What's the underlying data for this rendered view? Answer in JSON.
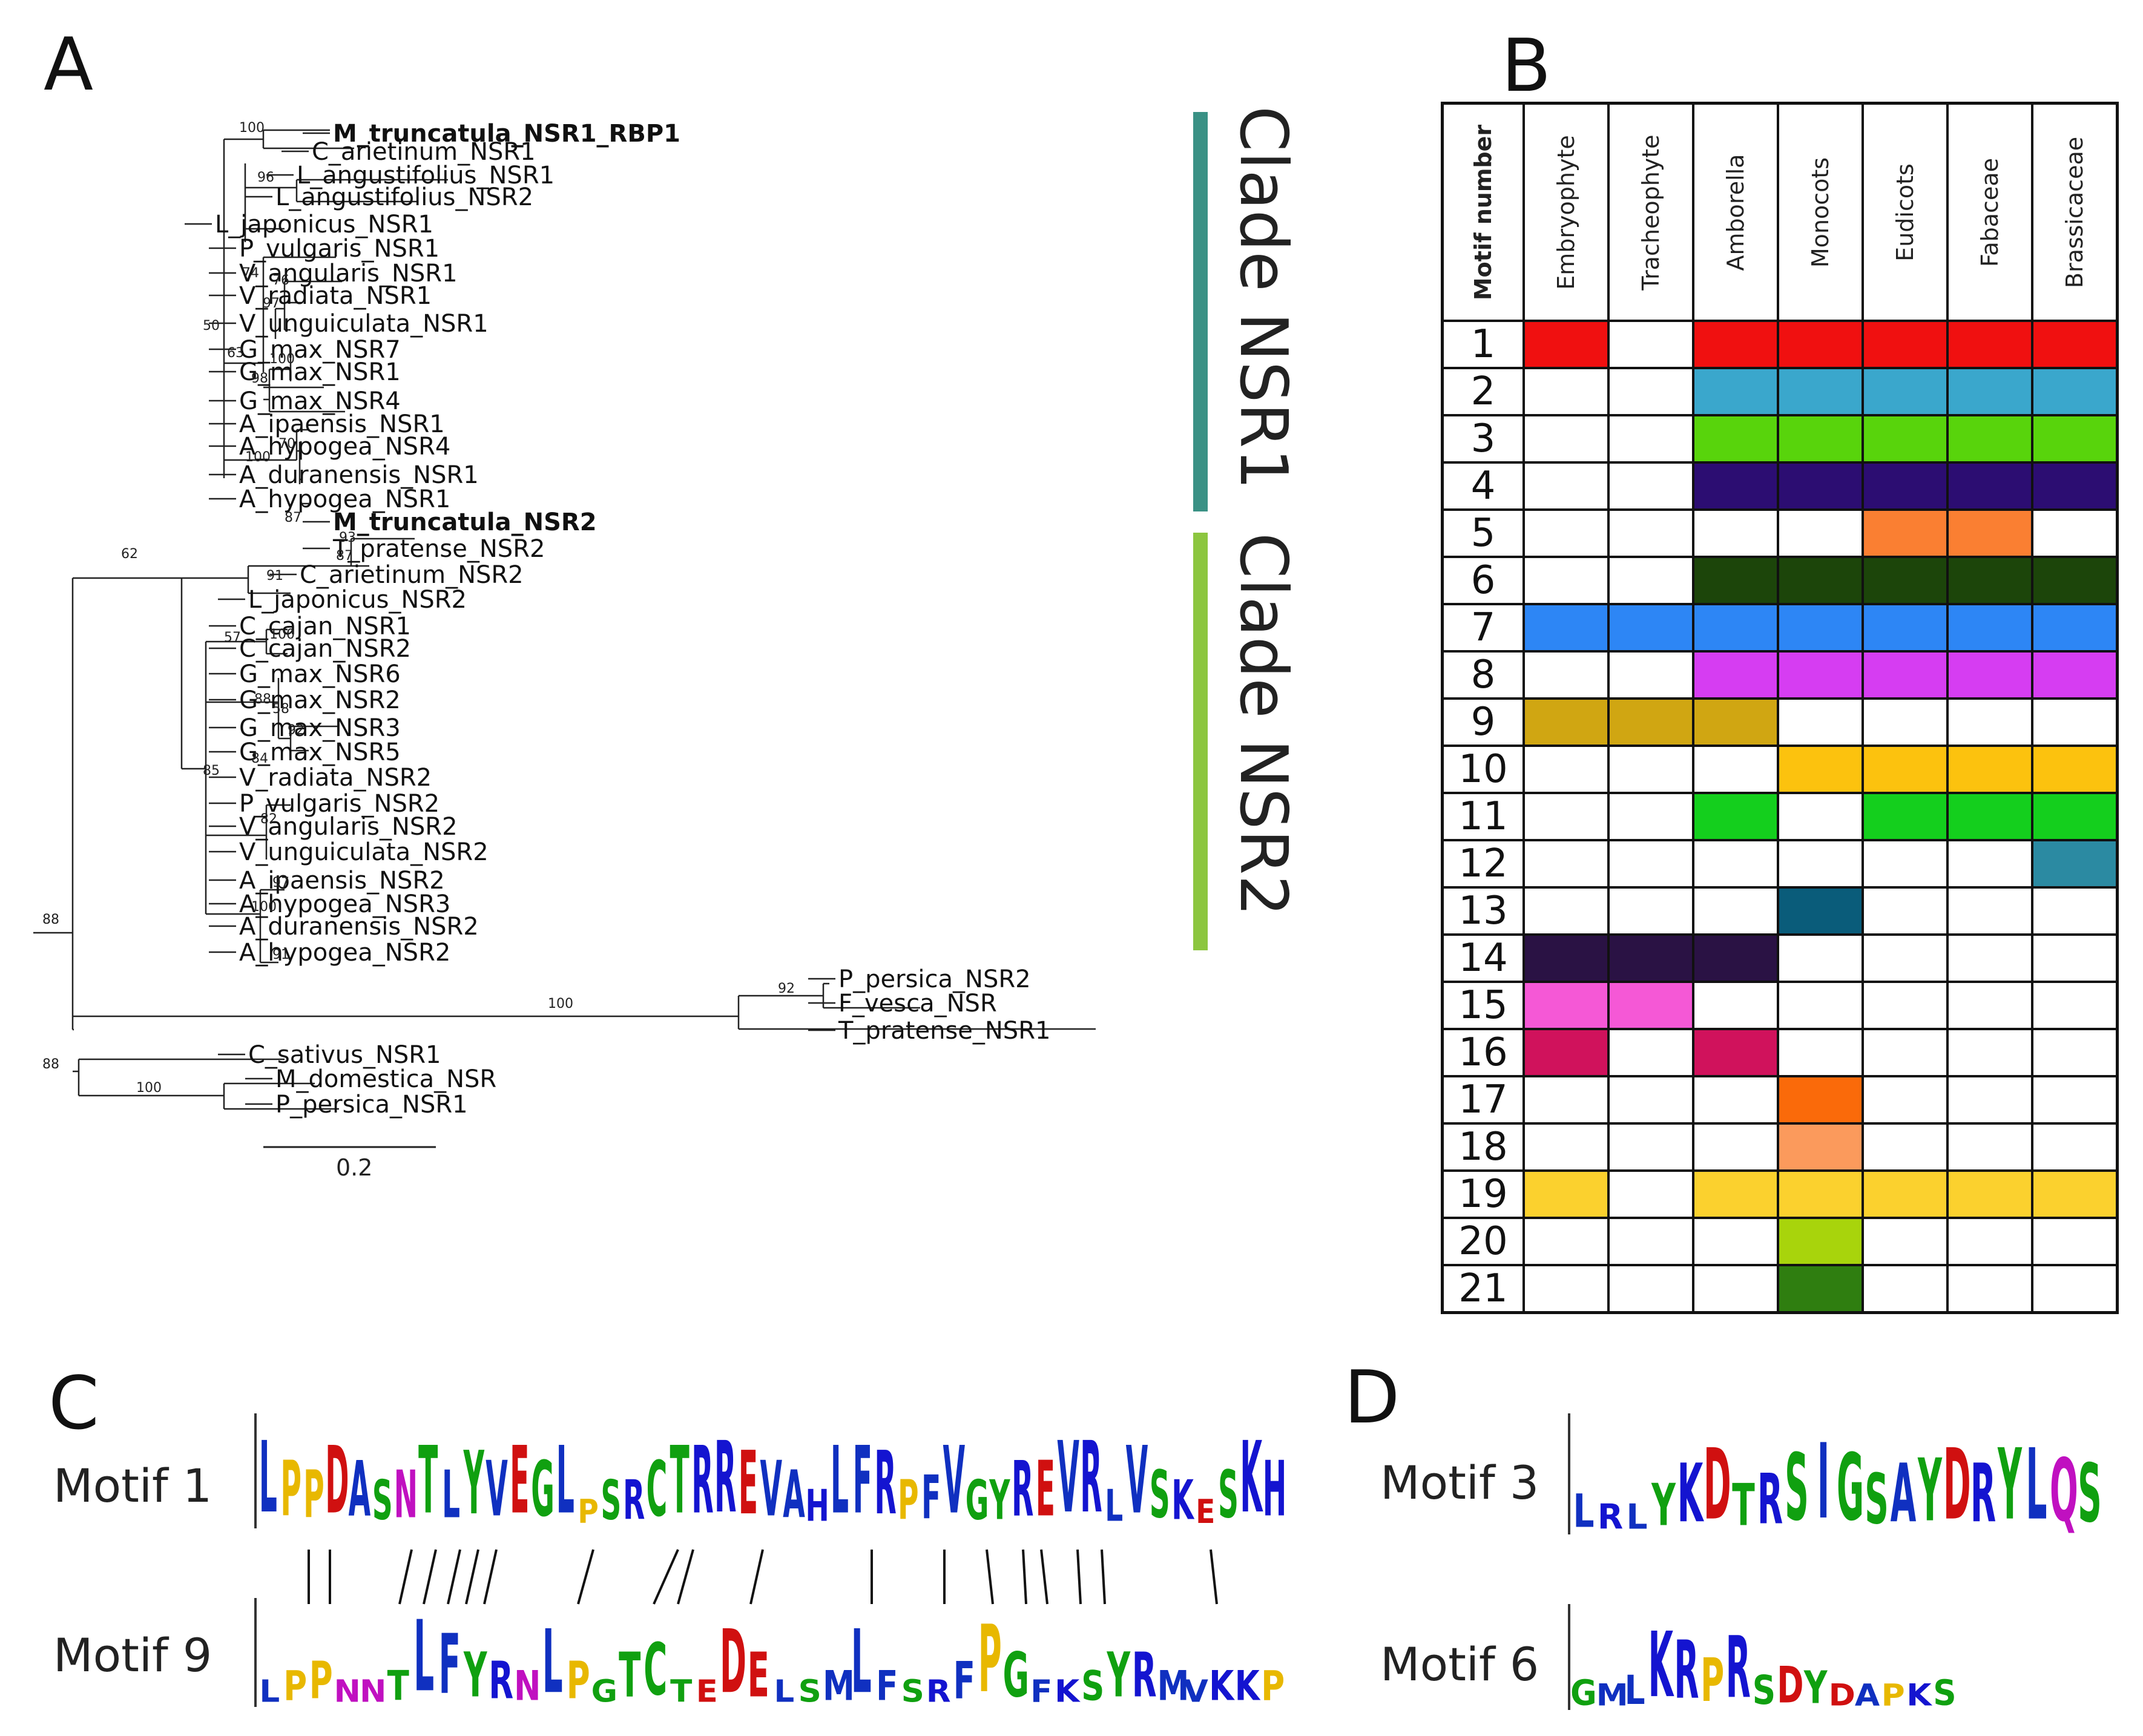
{
  "panels": {
    "a": "A",
    "b": "B",
    "c": "C",
    "d": "D"
  },
  "tree": {
    "leaves": [
      {
        "label": "M_truncatula_NSR1_RBP1",
        "bold": true
      },
      {
        "label": "C_arietinum_NSR1",
        "bold": false
      },
      {
        "label": "L_angustifolius_NSR1",
        "bold": false
      },
      {
        "label": "L_angustifolius_NSR2",
        "bold": false
      },
      {
        "label": "L_japonicus_NSR1",
        "bold": false
      },
      {
        "label": "P_vulgaris_NSR1",
        "bold": false
      },
      {
        "label": "V_angularis_NSR1",
        "bold": false
      },
      {
        "label": "V_radiata_NSR1",
        "bold": false
      },
      {
        "label": "V_unguiculata_NSR1",
        "bold": false
      },
      {
        "label": "G_max_NSR7",
        "bold": false
      },
      {
        "label": "G_max_NSR1",
        "bold": false
      },
      {
        "label": "G_max_NSR4",
        "bold": false
      },
      {
        "label": "A_ipaensis_NSR1",
        "bold": false
      },
      {
        "label": "A_hypogea_NSR4",
        "bold": false
      },
      {
        "label": "A_duranensis_NSR1",
        "bold": false
      },
      {
        "label": "A_hypogea_NSR1",
        "bold": false
      },
      {
        "label": "M_truncatula_NSR2",
        "bold": true
      },
      {
        "label": "T_pratense_NSR2",
        "bold": false
      },
      {
        "label": "C_arietinum_NSR2",
        "bold": false
      },
      {
        "label": "L_japonicus_NSR2",
        "bold": false
      },
      {
        "label": "C_cajan_NSR1",
        "bold": false
      },
      {
        "label": "C_cajan_NSR2",
        "bold": false
      },
      {
        "label": "G_max_NSR6",
        "bold": false
      },
      {
        "label": "G_max_NSR2",
        "bold": false
      },
      {
        "label": "G_max_NSR3",
        "bold": false
      },
      {
        "label": "G_max_NSR5",
        "bold": false
      },
      {
        "label": "V_radiata_NSR2",
        "bold": false
      },
      {
        "label": "P_vulgaris_NSR2",
        "bold": false
      },
      {
        "label": "V_angularis_NSR2",
        "bold": false
      },
      {
        "label": "V_unguiculata_NSR2",
        "bold": false
      },
      {
        "label": "A_ipaensis_NSR2",
        "bold": false
      },
      {
        "label": "A_hypogea_NSR3",
        "bold": false
      },
      {
        "label": "A_duranensis_NSR2",
        "bold": false
      },
      {
        "label": "A_hypogea_NSR2",
        "bold": false
      },
      {
        "label": "P_persica_NSR2",
        "bold": false
      },
      {
        "label": "F_vesca_NSR",
        "bold": false
      },
      {
        "label": "T_pratense_NSR1",
        "bold": false
      },
      {
        "label": "C_sativus_NSR1",
        "bold": false
      },
      {
        "label": "M_domestica_NSR",
        "bold": false
      },
      {
        "label": "P_persica_NSR1",
        "bold": false
      }
    ],
    "bootstrap": [
      "100",
      "96",
      "74",
      "76",
      "97",
      "50",
      "63",
      "100",
      "98",
      "70",
      "100",
      "87",
      "62",
      "93",
      "87",
      "91",
      "57",
      "100",
      "88",
      "58",
      "92",
      "84",
      "85",
      "82",
      "97",
      "100",
      "91",
      "88",
      "100",
      "92",
      "88",
      "100"
    ],
    "scale_label": "0.2",
    "clades": [
      {
        "label": "Clade NSR1",
        "color": "#3a9185"
      },
      {
        "label": "Clade NSR2",
        "color": "#8cc63f"
      }
    ]
  },
  "table": {
    "header_first": "Motif number",
    "columns": [
      "Embryophyte",
      "Tracheophyte",
      "Amborella",
      "Monocots",
      "Eudicots",
      "Fabaceae",
      "Brassicaceae"
    ],
    "rows": [
      {
        "motif": "1",
        "color": "#f01010",
        "present": [
          1,
          0,
          1,
          1,
          1,
          1,
          1
        ]
      },
      {
        "motif": "2",
        "color": "#3aa7cc",
        "present": [
          0,
          0,
          1,
          1,
          1,
          1,
          1
        ]
      },
      {
        "motif": "3",
        "color": "#58d40c",
        "present": [
          0,
          0,
          1,
          1,
          1,
          1,
          1
        ]
      },
      {
        "motif": "4",
        "color": "#2c0d72",
        "present": [
          0,
          0,
          1,
          1,
          1,
          1,
          1
        ]
      },
      {
        "motif": "5",
        "color": "#fa7f32",
        "present": [
          0,
          0,
          0,
          0,
          1,
          1,
          0
        ]
      },
      {
        "motif": "6",
        "color": "#1c450a",
        "present": [
          0,
          0,
          1,
          1,
          1,
          1,
          1
        ]
      },
      {
        "motif": "7",
        "color": "#2d86f5",
        "present": [
          1,
          1,
          1,
          1,
          1,
          1,
          1
        ]
      },
      {
        "motif": "8",
        "color": "#d63df2",
        "present": [
          0,
          0,
          1,
          1,
          1,
          1,
          1
        ]
      },
      {
        "motif": "9",
        "color": "#d0a612",
        "present": [
          1,
          1,
          1,
          0,
          0,
          0,
          0
        ]
      },
      {
        "motif": "10",
        "color": "#fcc20e",
        "present": [
          0,
          0,
          0,
          1,
          1,
          1,
          1
        ]
      },
      {
        "motif": "11",
        "color": "#14cf1d",
        "present": [
          0,
          0,
          1,
          0,
          1,
          1,
          1
        ]
      },
      {
        "motif": "12",
        "color": "#2b8aa2",
        "present": [
          0,
          0,
          0,
          0,
          0,
          0,
          1
        ]
      },
      {
        "motif": "13",
        "color": "#0a5c7a",
        "present": [
          0,
          0,
          0,
          1,
          0,
          0,
          0
        ]
      },
      {
        "motif": "14",
        "color": "#2a1244",
        "present": [
          1,
          1,
          1,
          0,
          0,
          0,
          0
        ]
      },
      {
        "motif": "15",
        "color": "#f558d6",
        "present": [
          1,
          1,
          0,
          0,
          0,
          0,
          0
        ]
      },
      {
        "motif": "16",
        "color": "#d0125c",
        "present": [
          1,
          0,
          1,
          0,
          0,
          0,
          0
        ]
      },
      {
        "motif": "17",
        "color": "#fa6a0a",
        "present": [
          0,
          0,
          0,
          1,
          0,
          0,
          0
        ]
      },
      {
        "motif": "18",
        "color": "#fb9a5c",
        "present": [
          0,
          0,
          0,
          1,
          0,
          0,
          0
        ]
      },
      {
        "motif": "19",
        "color": "#fbd12e",
        "present": [
          1,
          0,
          1,
          1,
          1,
          1,
          1
        ]
      },
      {
        "motif": "20",
        "color": "#a8d40c",
        "present": [
          0,
          0,
          0,
          1,
          0,
          0,
          0
        ]
      },
      {
        "motif": "21",
        "color": "#2f7e10",
        "present": [
          0,
          0,
          0,
          1,
          0,
          0,
          0
        ]
      }
    ]
  },
  "logos": {
    "motif1": {
      "label": "Motif 1",
      "seq": "LPPDASNTLYVEGLPSRCTRREVAHLFRPFVGYREVRLVSKESKH"
    },
    "motif9": {
      "label": "Motif 9",
      "seq": "LPPNNTLFYRNLPGTCTEDELSMLFSRFPGFKSYRMVKKP"
    },
    "motif3": {
      "label": "Motif 3",
      "seq": "LRLYKDTRSIGSAYDRYLQS"
    },
    "motif6": {
      "label": "Motif 6",
      "seq": "GMLKRPRSDYDAPKS"
    }
  }
}
